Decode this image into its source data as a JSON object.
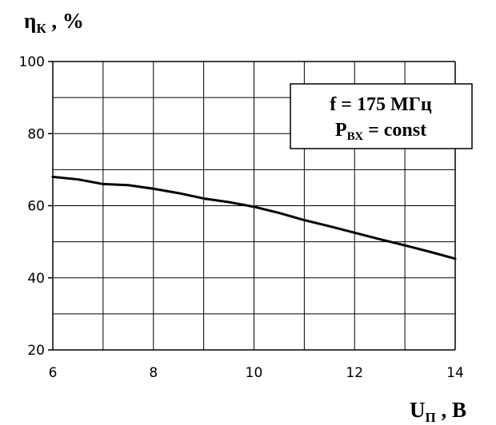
{
  "chart_data": {
    "type": "line",
    "ylabel": {
      "main": "η",
      "sub": "К",
      "unit": " , %"
    },
    "xlabel": {
      "main": "U",
      "sub": "П",
      "unit": " , В"
    },
    "xlim": [
      6,
      14
    ],
    "ylim": [
      20,
      100
    ],
    "x_ticks": [
      6,
      8,
      10,
      12,
      14
    ],
    "y_ticks": [
      20,
      40,
      60,
      80,
      100
    ],
    "grid": true,
    "legend_box": {
      "line1": "f = 175 МГц",
      "line2_main": "P",
      "line2_sub": "ВХ",
      "line2_rest": " = const"
    },
    "series": [
      {
        "x": [
          6,
          6.5,
          7,
          7.5,
          8,
          8.5,
          9,
          9.5,
          10,
          10.5,
          11,
          11.5,
          12,
          12.5,
          13,
          13.5,
          14
        ],
        "y": [
          68,
          67.3,
          66,
          65.7,
          64.7,
          63.5,
          62,
          61,
          59.7,
          58,
          56,
          54.3,
          52.5,
          50.7,
          49,
          47.2,
          45.3
        ],
        "color": "#000000"
      }
    ]
  }
}
